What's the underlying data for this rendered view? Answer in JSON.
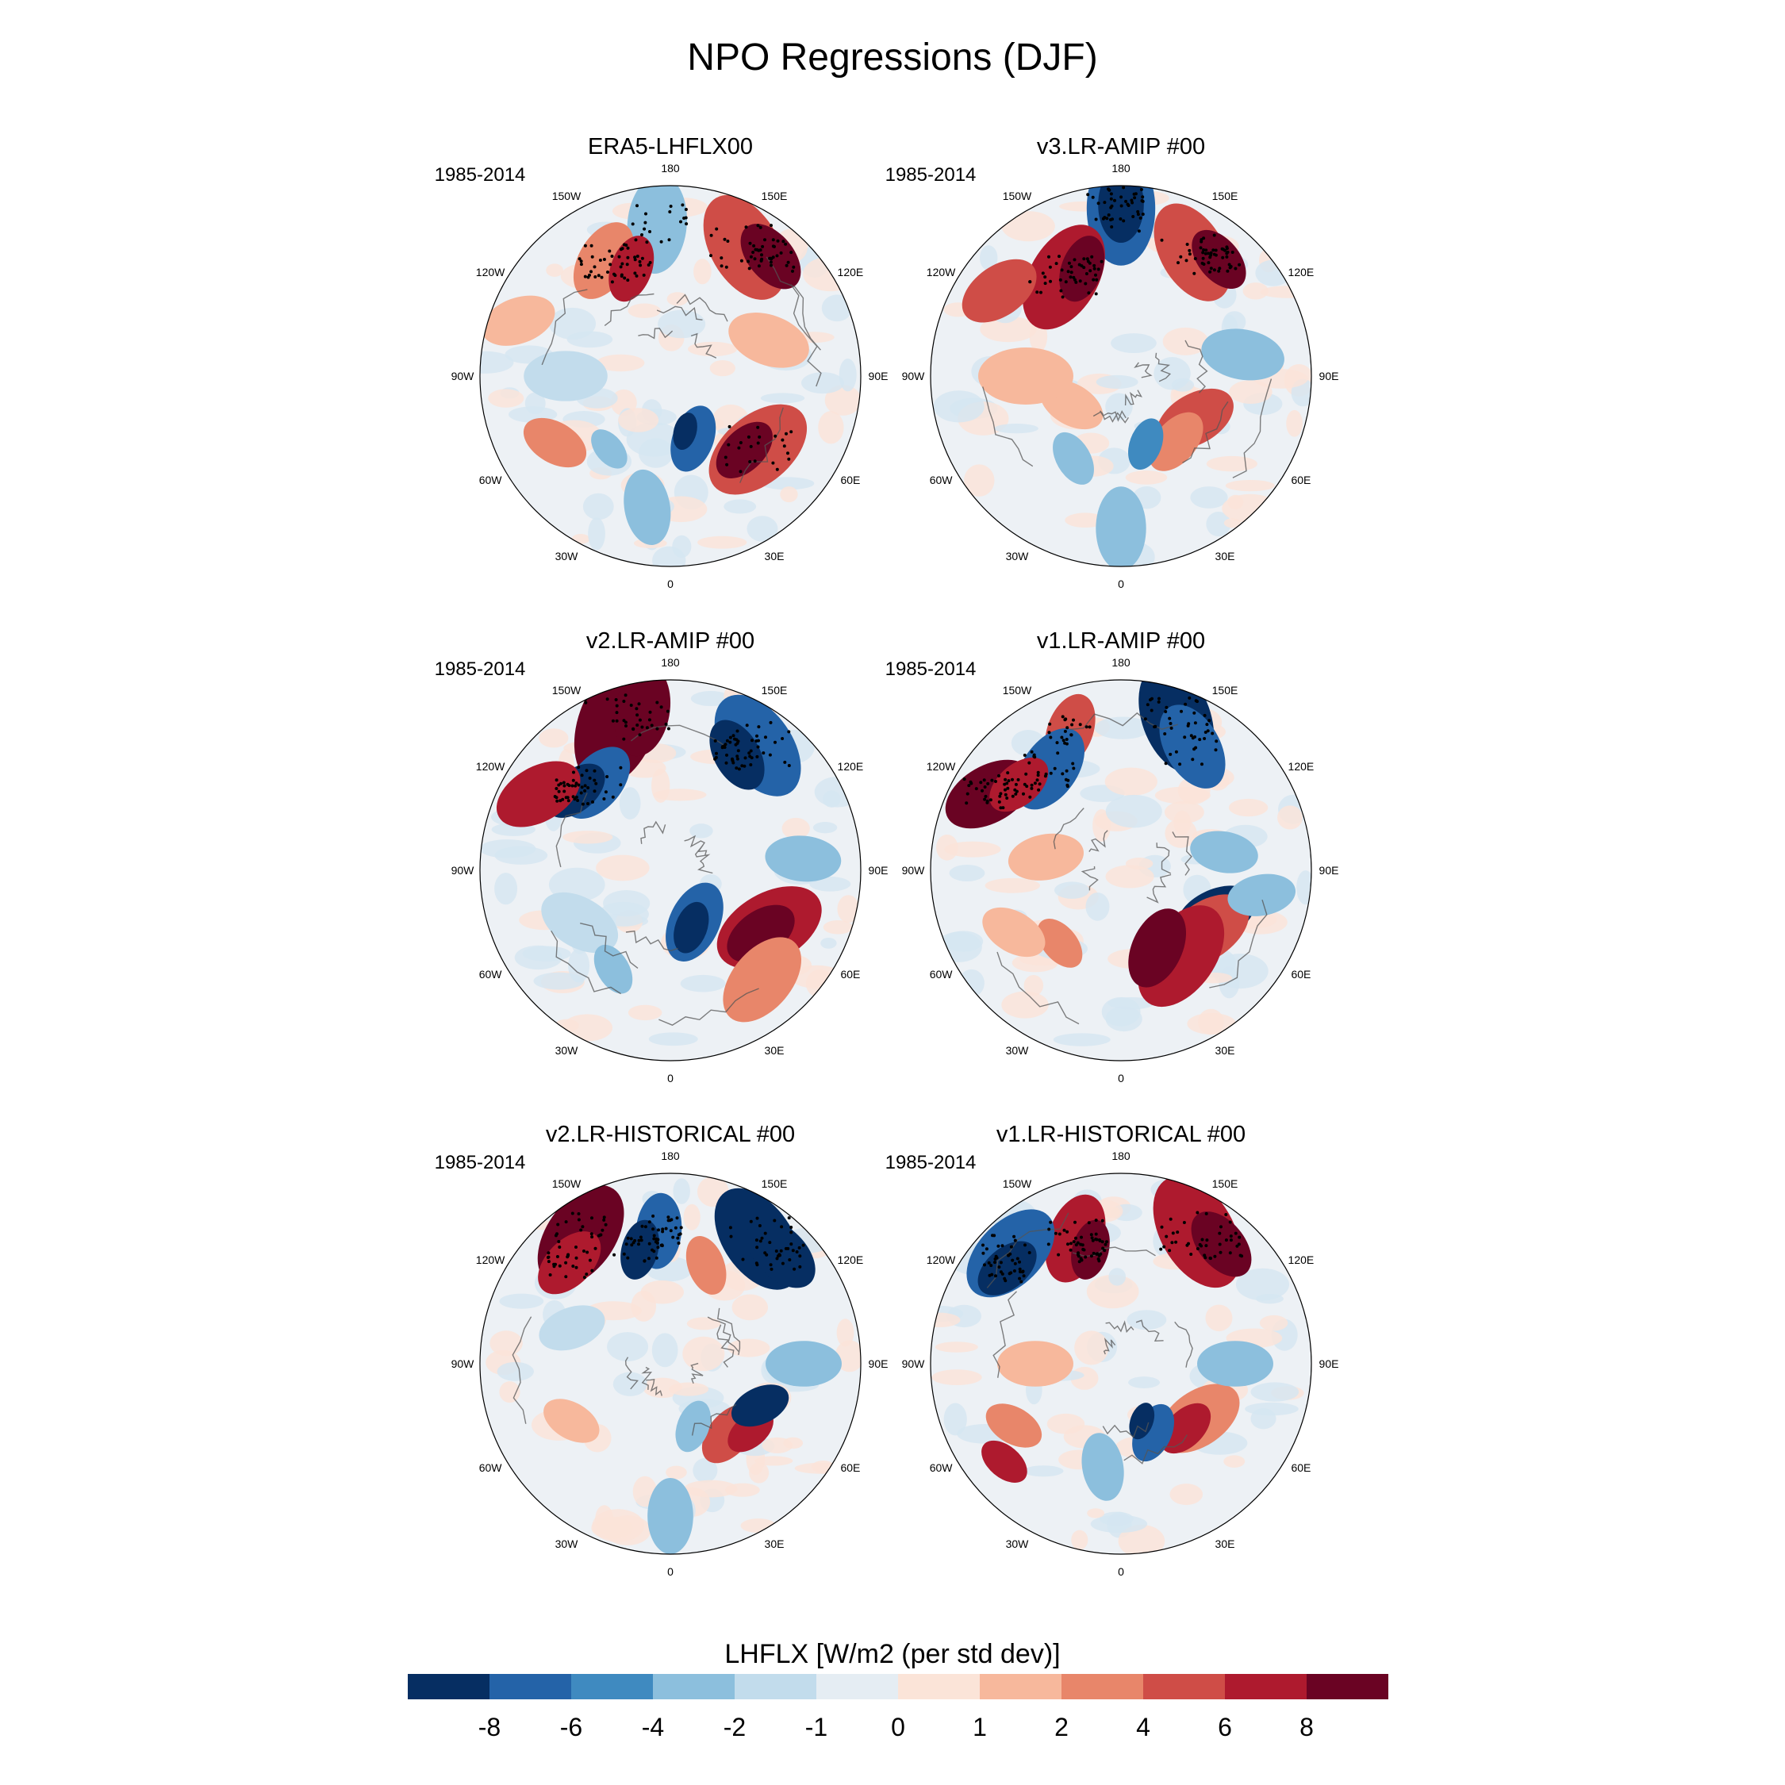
{
  "chart_data": {
    "type": "heatmap",
    "title": "NPO Regressions (DJF)",
    "projection": "north polar stereographic",
    "longitude_labels": [
      "180",
      "150E",
      "120E",
      "90E",
      "60E",
      "30E",
      "0",
      "30W",
      "60W",
      "90W",
      "120W",
      "150W"
    ],
    "panels": [
      {
        "title": "ERA5-LHFLX00",
        "period": "1985-2014"
      },
      {
        "title": "v3.LR-AMIP  #00",
        "period": "1985-2014"
      },
      {
        "title": "v2.LR-AMIP  #00",
        "period": "1985-2014"
      },
      {
        "title": "v1.LR-AMIP  #00",
        "period": "1985-2014"
      },
      {
        "title": "v2.LR-HISTORICAL  #00",
        "period": "1985-2014"
      },
      {
        "title": "v1.LR-HISTORICAL  #00",
        "period": "1985-2014"
      }
    ],
    "colorbar": {
      "title": "LHFLX [W/m2 (per std dev)]",
      "tick_labels": [
        "-8",
        "-6",
        "-4",
        "-2",
        "-1",
        "0",
        "1",
        "2",
        "4",
        "6",
        "8"
      ],
      "colors": [
        "#062e62",
        "#2463a8",
        "#3f8ac0",
        "#8cbfdd",
        "#c2dcec",
        "#e5edf3",
        "#fbe4d8",
        "#f7b89c",
        "#e8866a",
        "#cf4d47",
        "#ae1a2e",
        "#6a0323"
      ]
    }
  }
}
